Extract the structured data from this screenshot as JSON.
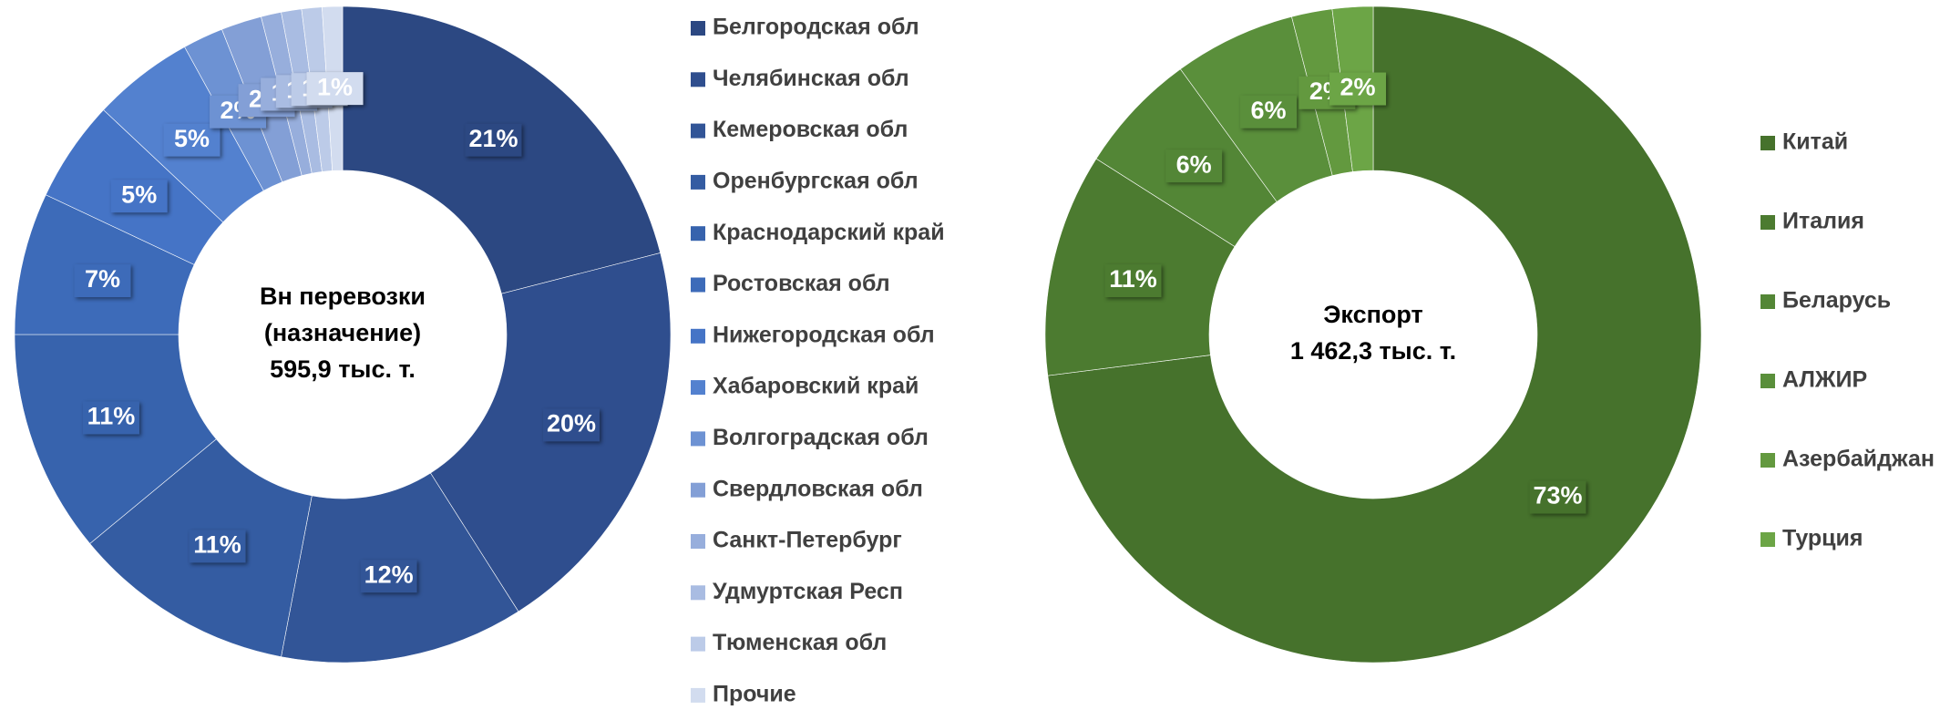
{
  "chart_data": [
    {
      "type": "pie",
      "center_text": [
        "Вн перевозки",
        "(назначение)",
        "595,9 тыс. т."
      ],
      "categories": [
        "Белгородская обл",
        "Челябинская обл",
        "Кемеровская обл",
        "Оренбургская обл",
        "Краснодарский край",
        "Ростовская  обл",
        "Нижегородская обл",
        "Хабаровский край",
        "Волгоградская обл",
        "Свердловская обл",
        "Санкт-Петербург",
        "Удмуртская Респ",
        "Тюменская обл",
        "Прочие"
      ],
      "values": [
        21,
        20,
        12,
        11,
        11,
        7,
        5,
        5,
        2,
        2,
        1,
        1,
        1,
        1
      ],
      "value_labels": [
        "21%",
        "20%",
        "12%",
        "11%",
        "11%",
        "7%",
        "5%",
        "5%",
        "2%",
        "2%",
        "1%",
        "1%",
        "1%",
        "1%"
      ],
      "colors": [
        "#2c4882",
        "#2f4e8e",
        "#325597",
        "#345ca2",
        "#3763ad",
        "#3d6bb9",
        "#4574c6",
        "#5381cf",
        "#6d92d3",
        "#839fd6",
        "#97aedc",
        "#a9bce2",
        "#bccbe8",
        "#d2dcef"
      ]
    },
    {
      "type": "pie",
      "center_text": [
        "Экспорт",
        "1 462,3 тыс. т."
      ],
      "categories": [
        "Китай",
        "Италия",
        "Беларусь",
        "АЛЖИР",
        "Азербайджан",
        "Турция"
      ],
      "values": [
        73,
        11,
        6,
        6,
        2,
        2
      ],
      "value_labels": [
        "73%",
        "11%",
        "6%",
        "6%",
        "2%",
        "2%"
      ],
      "colors": [
        "#46722c",
        "#4c7b30",
        "#538636",
        "#5a8f3b",
        "#63993f",
        "#6ca546"
      ]
    }
  ]
}
